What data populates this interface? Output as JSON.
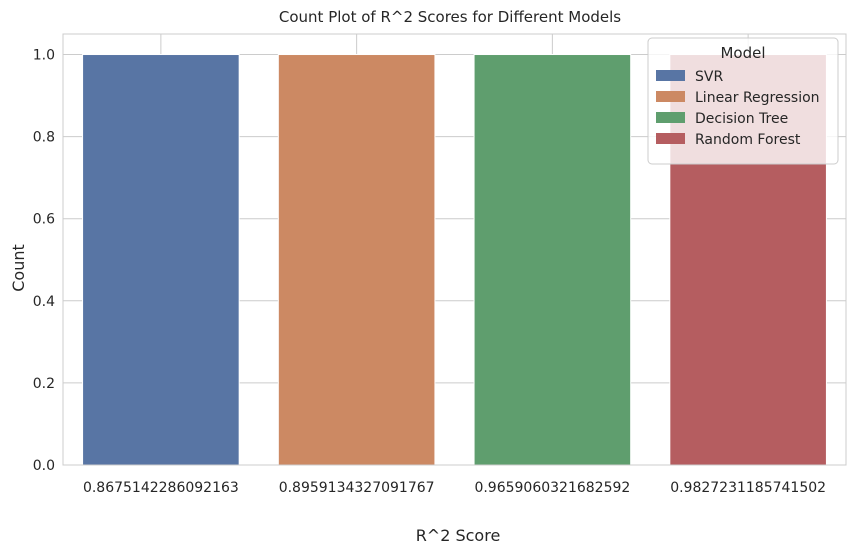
{
  "chart_data": {
    "type": "bar",
    "title": "Count Plot of R^2 Scores for Different Models",
    "xlabel": "R^2 Score",
    "ylabel": "Count",
    "categories": [
      "0.8675142286092163",
      "0.8959134327091767",
      "0.9659060321682592",
      "0.9827231185741502"
    ],
    "values": [
      1,
      1,
      1,
      1
    ],
    "series": [
      {
        "name": "SVR",
        "color": "#5875a4",
        "values": [
          1,
          null,
          null,
          null
        ]
      },
      {
        "name": "Linear Regression",
        "color": "#cc8963",
        "values": [
          null,
          1,
          null,
          null
        ]
      },
      {
        "name": "Decision Tree",
        "color": "#5f9e6e",
        "values": [
          null,
          null,
          1,
          null
        ]
      },
      {
        "name": "Random Forest",
        "color": "#b55d60",
        "values": [
          null,
          null,
          null,
          1
        ]
      }
    ],
    "ylim": [
      0,
      1.05
    ],
    "yticks": [
      "0.0",
      "0.2",
      "0.4",
      "0.6",
      "0.8",
      "1.0"
    ],
    "grid": true,
    "legend": {
      "title": "Model",
      "position": "top-right"
    }
  }
}
